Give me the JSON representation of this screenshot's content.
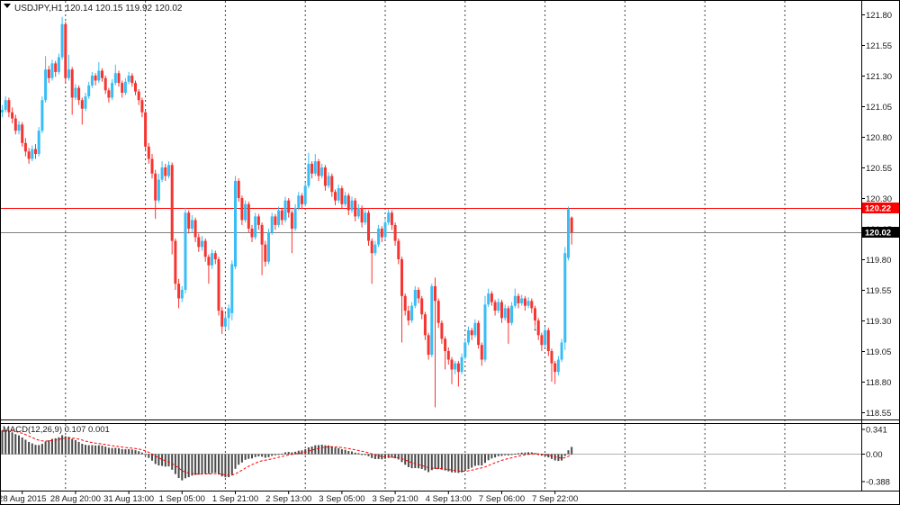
{
  "window": {
    "title": "USDJPY,H1  120.14 120.15 119.92 120.02"
  },
  "chart_data": {
    "type": "candlestick",
    "symbol": "USDJPY",
    "timeframe": "H1",
    "last_bar": {
      "open": "120.14",
      "high": "120.15",
      "low": "119.92",
      "close": "120.02"
    },
    "bull_color": "#38bdf5",
    "bear_color": "#f63430",
    "grid_color": "#3f3f3f",
    "price_axis": {
      "labels": [
        "121.80",
        "121.55",
        "121.30",
        "121.05",
        "120.80",
        "120.55",
        "120.30",
        "120.05",
        "119.80",
        "119.55",
        "119.30",
        "119.05",
        "118.80",
        "118.55"
      ]
    },
    "time_axis": {
      "labels": [
        {
          "bar": 6,
          "text": "28 Aug 2015"
        },
        {
          "bar": 22,
          "text": "28 Aug 20:00"
        },
        {
          "bar": 38,
          "text": "31 Aug 13:00"
        },
        {
          "bar": 54,
          "text": "1 Sep 05:00"
        },
        {
          "bar": 70,
          "text": "1 Sep 21:00"
        },
        {
          "bar": 86,
          "text": "2 Sep 13:00"
        },
        {
          "bar": 102,
          "text": "3 Sep 05:00"
        },
        {
          "bar": 118,
          "text": "3 Sep 21:00"
        },
        {
          "bar": 134,
          "text": "4 Sep 13:00"
        },
        {
          "bar": 150,
          "text": "7 Sep 06:00"
        },
        {
          "bar": 166,
          "text": "7 Sep 22:00"
        }
      ]
    },
    "day_grid_bars": [
      19,
      43,
      67,
      91,
      115,
      139,
      163,
      187,
      211,
      235,
      259
    ],
    "hlines": [
      {
        "price": 120.22,
        "color": "#ff0000",
        "label": "120.22",
        "label_bg": "#ff0000"
      },
      {
        "price": 120.02,
        "color": "#808080",
        "label": "120.02",
        "label_bg": "#000000"
      }
    ],
    "marker": {
      "bar": 160,
      "price": 119.22,
      "glyph": "↓",
      "color": "#000000"
    },
    "macd": {
      "label": "MACD(12,26,9) 0.107 0.001",
      "fast": 12,
      "slow": 26,
      "signal": 9,
      "seed_fast": 120.75,
      "seed_slow": 120.42,
      "axis_labels": [
        "0.341",
        "0.00",
        "-0.388"
      ],
      "hist_color": "#4a4a4a",
      "signal_color": "#ff0000"
    },
    "candles": [
      [
        121.0,
        121.06,
        120.96,
        121.02
      ],
      [
        121.02,
        121.13,
        121.0,
        121.1
      ],
      [
        121.1,
        121.12,
        120.96,
        121.0
      ],
      [
        121.0,
        121.04,
        120.91,
        120.95
      ],
      [
        120.95,
        120.98,
        120.82,
        120.85
      ],
      [
        120.85,
        120.93,
        120.82,
        120.9
      ],
      [
        120.9,
        120.92,
        120.72,
        120.75
      ],
      [
        120.75,
        120.79,
        120.64,
        120.68
      ],
      [
        120.68,
        120.71,
        120.58,
        120.62
      ],
      [
        120.62,
        120.73,
        120.6,
        120.7
      ],
      [
        120.7,
        120.74,
        120.62,
        120.66
      ],
      [
        120.66,
        120.88,
        120.64,
        120.85
      ],
      [
        120.85,
        121.13,
        120.83,
        121.1
      ],
      [
        121.1,
        121.46,
        121.08,
        121.35
      ],
      [
        121.35,
        121.38,
        121.24,
        121.28
      ],
      [
        121.28,
        121.43,
        121.26,
        121.4
      ],
      [
        121.4,
        121.42,
        121.29,
        121.33
      ],
      [
        121.33,
        121.48,
        121.31,
        121.45
      ],
      [
        121.45,
        121.78,
        121.43,
        121.72
      ],
      [
        121.72,
        121.74,
        121.24,
        121.28
      ],
      [
        121.28,
        121.47,
        121.26,
        121.35
      ],
      [
        121.35,
        121.37,
        120.98,
        121.12
      ],
      [
        121.12,
        121.23,
        121.1,
        121.2
      ],
      [
        121.2,
        121.22,
        121.06,
        121.1
      ],
      [
        121.1,
        121.12,
        120.9,
        121.03
      ],
      [
        121.03,
        121.16,
        121.01,
        121.13
      ],
      [
        121.13,
        121.25,
        121.11,
        121.22
      ],
      [
        121.22,
        121.33,
        121.2,
        121.3
      ],
      [
        121.3,
        121.32,
        121.22,
        121.26
      ],
      [
        121.26,
        121.41,
        121.24,
        121.34
      ],
      [
        121.34,
        121.36,
        121.25,
        121.28
      ],
      [
        121.28,
        121.3,
        121.15,
        121.18
      ],
      [
        121.18,
        121.2,
        121.08,
        121.12
      ],
      [
        121.12,
        121.27,
        121.1,
        121.24
      ],
      [
        121.24,
        121.39,
        121.22,
        121.32
      ],
      [
        121.32,
        121.34,
        121.21,
        121.24
      ],
      [
        121.24,
        121.26,
        121.12,
        121.16
      ],
      [
        121.16,
        121.28,
        121.14,
        121.25
      ],
      [
        121.25,
        121.33,
        121.23,
        121.3
      ],
      [
        121.3,
        121.32,
        121.21,
        121.24
      ],
      [
        121.24,
        121.26,
        121.14,
        121.17
      ],
      [
        121.17,
        121.19,
        121.06,
        121.1
      ],
      [
        121.1,
        121.12,
        120.96,
        121.0
      ],
      [
        121.0,
        121.02,
        120.68,
        120.72
      ],
      [
        120.72,
        120.75,
        120.58,
        120.62
      ],
      [
        120.62,
        120.66,
        120.46,
        120.5
      ],
      [
        120.5,
        120.53,
        120.13,
        120.28
      ],
      [
        120.28,
        120.5,
        120.26,
        120.45
      ],
      [
        120.45,
        120.6,
        120.43,
        120.55
      ],
      [
        120.55,
        120.58,
        120.44,
        120.48
      ],
      [
        120.48,
        120.6,
        120.46,
        120.57
      ],
      [
        120.57,
        120.59,
        119.84,
        119.95
      ],
      [
        119.95,
        119.97,
        119.55,
        119.6
      ],
      [
        119.6,
        119.64,
        119.4,
        119.48
      ],
      [
        119.48,
        119.58,
        119.45,
        119.55
      ],
      [
        119.55,
        120.22,
        119.52,
        120.18
      ],
      [
        120.18,
        120.2,
        120.01,
        120.05
      ],
      [
        120.05,
        120.16,
        120.02,
        120.12
      ],
      [
        120.12,
        120.14,
        119.94,
        119.98
      ],
      [
        119.98,
        120.01,
        119.86,
        119.9
      ],
      [
        119.9,
        119.99,
        119.87,
        119.95
      ],
      [
        119.95,
        119.97,
        119.78,
        119.82
      ],
      [
        119.82,
        119.84,
        119.6,
        119.75
      ],
      [
        119.75,
        119.88,
        119.72,
        119.85
      ],
      [
        119.85,
        119.87,
        119.76,
        119.8
      ],
      [
        119.8,
        119.82,
        119.34,
        119.38
      ],
      [
        119.38,
        119.41,
        119.19,
        119.25
      ],
      [
        119.25,
        119.36,
        119.22,
        119.32
      ],
      [
        119.32,
        119.43,
        119.22,
        119.4
      ],
      [
        119.36,
        119.79,
        119.3,
        119.76
      ],
      [
        119.74,
        120.48,
        119.72,
        120.44
      ],
      [
        120.44,
        120.46,
        120.27,
        120.3
      ],
      [
        120.3,
        120.32,
        120.08,
        120.12
      ],
      [
        120.12,
        120.28,
        120.1,
        120.25
      ],
      [
        120.25,
        120.27,
        120.02,
        120.05
      ],
      [
        120.05,
        120.08,
        119.94,
        119.98
      ],
      [
        119.98,
        120.18,
        119.96,
        120.15
      ],
      [
        120.15,
        120.17,
        120.04,
        120.08
      ],
      [
        120.08,
        120.1,
        119.67,
        119.92
      ],
      [
        119.92,
        119.95,
        119.74,
        119.78
      ],
      [
        119.78,
        120.05,
        119.76,
        120.02
      ],
      [
        120.02,
        120.18,
        120.0,
        120.15
      ],
      [
        120.15,
        120.17,
        120.04,
        120.08
      ],
      [
        120.08,
        120.23,
        120.06,
        120.2
      ],
      [
        120.2,
        120.22,
        120.08,
        120.12
      ],
      [
        120.12,
        120.31,
        120.1,
        120.28
      ],
      [
        120.28,
        120.3,
        120.14,
        120.18
      ],
      [
        120.18,
        120.2,
        119.85,
        120.05
      ],
      [
        120.05,
        120.25,
        120.03,
        120.22
      ],
      [
        120.22,
        120.35,
        120.2,
        120.32
      ],
      [
        120.32,
        120.34,
        120.21,
        120.25
      ],
      [
        120.25,
        120.43,
        120.23,
        120.4
      ],
      [
        120.4,
        120.67,
        120.38,
        120.58
      ],
      [
        120.58,
        120.6,
        120.46,
        120.5
      ],
      [
        120.5,
        120.66,
        120.48,
        120.6
      ],
      [
        120.6,
        120.62,
        120.44,
        120.48
      ],
      [
        120.48,
        120.58,
        120.46,
        120.55
      ],
      [
        120.55,
        120.57,
        120.36,
        120.4
      ],
      [
        120.4,
        120.51,
        120.38,
        120.48
      ],
      [
        120.48,
        120.5,
        120.31,
        120.35
      ],
      [
        120.35,
        120.37,
        120.24,
        120.28
      ],
      [
        120.28,
        120.41,
        120.26,
        120.38
      ],
      [
        120.38,
        120.4,
        120.21,
        120.25
      ],
      [
        120.25,
        120.35,
        120.23,
        120.32
      ],
      [
        120.32,
        120.34,
        120.16,
        120.2
      ],
      [
        120.2,
        120.31,
        120.18,
        120.28
      ],
      [
        120.28,
        120.3,
        120.11,
        120.15
      ],
      [
        120.15,
        120.25,
        120.13,
        120.22
      ],
      [
        120.22,
        120.24,
        120.06,
        120.1
      ],
      [
        120.1,
        120.21,
        120.08,
        120.18
      ],
      [
        120.18,
        120.2,
        119.91,
        119.95
      ],
      [
        119.95,
        119.97,
        119.6,
        119.85
      ],
      [
        119.85,
        119.95,
        119.83,
        119.92
      ],
      [
        119.92,
        120.08,
        119.9,
        120.05
      ],
      [
        120.05,
        120.07,
        119.94,
        119.98
      ],
      [
        119.98,
        120.13,
        119.96,
        120.1
      ],
      [
        120.1,
        120.21,
        120.08,
        120.18
      ],
      [
        120.18,
        120.2,
        120.04,
        120.08
      ],
      [
        120.08,
        120.1,
        119.91,
        119.95
      ],
      [
        119.95,
        119.97,
        119.76,
        119.8
      ],
      [
        119.8,
        119.82,
        119.12,
        119.5
      ],
      [
        119.5,
        119.52,
        119.34,
        119.38
      ],
      [
        119.38,
        119.42,
        119.26,
        119.3
      ],
      [
        119.3,
        119.45,
        119.28,
        119.42
      ],
      [
        119.42,
        119.58,
        119.4,
        119.55
      ],
      [
        119.55,
        119.57,
        119.44,
        119.48
      ],
      [
        119.48,
        119.5,
        119.31,
        119.35
      ],
      [
        119.35,
        119.37,
        119.14,
        119.18
      ],
      [
        119.18,
        119.2,
        118.98,
        119.02
      ],
      [
        119.02,
        119.6,
        119.0,
        119.58
      ],
      [
        119.58,
        119.65,
        118.59,
        119.46
      ],
      [
        119.46,
        119.48,
        119.24,
        119.28
      ],
      [
        119.28,
        119.3,
        119.11,
        119.15
      ],
      [
        119.15,
        119.17,
        118.9,
        119.05
      ],
      [
        119.05,
        119.08,
        118.94,
        118.98
      ],
      [
        118.98,
        119.0,
        118.78,
        118.9
      ],
      [
        118.9,
        118.97,
        118.86,
        118.95
      ],
      [
        118.95,
        118.97,
        118.76,
        118.88
      ],
      [
        118.88,
        119.03,
        118.86,
        119.0
      ],
      [
        119.0,
        119.15,
        118.98,
        119.12
      ],
      [
        119.12,
        119.25,
        119.1,
        119.22
      ],
      [
        119.22,
        119.24,
        119.14,
        119.18
      ],
      [
        119.18,
        119.31,
        119.16,
        119.28
      ],
      [
        119.28,
        119.3,
        119.07,
        119.1
      ],
      [
        119.1,
        119.12,
        118.93,
        118.98
      ],
      [
        118.98,
        119.5,
        118.96,
        119.43
      ],
      [
        119.43,
        119.56,
        119.41,
        119.52
      ],
      [
        119.52,
        119.54,
        119.42,
        119.45
      ],
      [
        119.45,
        119.47,
        119.34,
        119.38
      ],
      [
        119.38,
        119.48,
        119.36,
        119.45
      ],
      [
        119.45,
        119.47,
        119.28,
        119.32
      ],
      [
        119.32,
        119.43,
        119.3,
        119.4
      ],
      [
        119.4,
        119.42,
        119.11,
        119.28
      ],
      [
        119.28,
        119.45,
        119.26,
        119.42
      ],
      [
        119.42,
        119.56,
        119.4,
        119.5
      ],
      [
        119.5,
        119.52,
        119.4,
        119.44
      ],
      [
        119.44,
        119.51,
        119.42,
        119.48
      ],
      [
        119.48,
        119.5,
        119.38,
        119.42
      ],
      [
        119.42,
        119.49,
        119.4,
        119.46
      ],
      [
        119.46,
        119.48,
        119.36,
        119.4
      ],
      [
        119.4,
        119.42,
        119.26,
        119.3
      ],
      [
        119.3,
        119.32,
        119.14,
        119.18
      ],
      [
        119.18,
        119.2,
        119.05,
        119.1
      ],
      [
        119.1,
        119.25,
        119.08,
        119.22
      ],
      [
        119.22,
        119.24,
        119.01,
        119.05
      ],
      [
        119.05,
        119.07,
        118.8,
        118.95
      ],
      [
        118.95,
        118.97,
        118.78,
        118.88
      ],
      [
        118.88,
        119.01,
        118.85,
        118.98
      ],
      [
        118.98,
        119.15,
        118.96,
        119.12
      ],
      [
        119.12,
        119.9,
        119.06,
        119.85
      ],
      [
        119.81,
        120.23,
        119.79,
        120.21
      ],
      [
        120.14,
        120.15,
        119.92,
        120.02
      ]
    ]
  }
}
